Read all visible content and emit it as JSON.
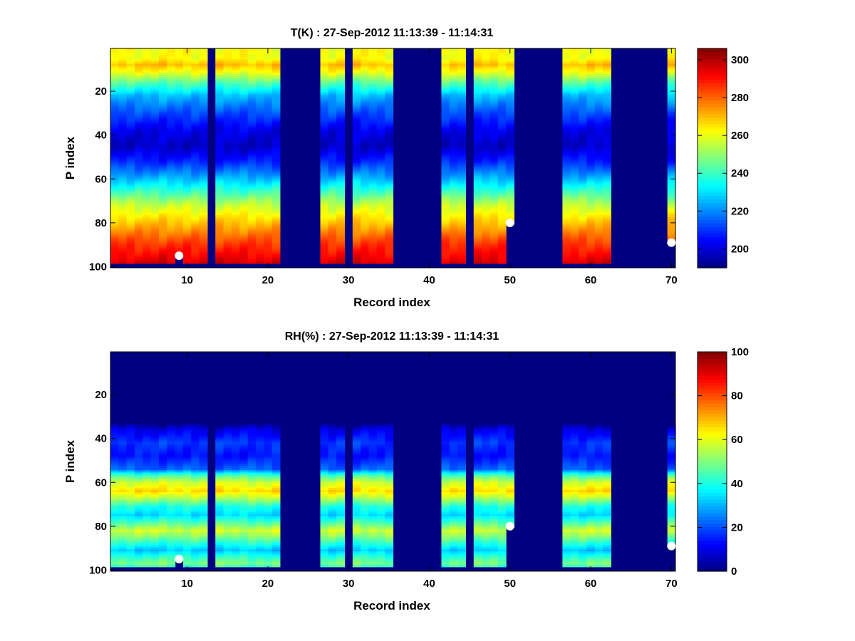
{
  "chart_data": [
    {
      "type": "heatmap",
      "title": "T(K) : 27-Sep-2012 11:13:39 - 11:14:31",
      "xlabel": "Record index",
      "ylabel": "P index",
      "xlim": [
        0.5,
        70.5
      ],
      "ylim": [
        100.5,
        0.5
      ],
      "xticks": [
        10,
        20,
        30,
        40,
        50,
        60,
        70
      ],
      "yticks": [
        20,
        40,
        60,
        80,
        100
      ],
      "clim": [
        190,
        306
      ],
      "colorbar_ticks": [
        200,
        220,
        240,
        260,
        280,
        300
      ],
      "colormap": "jet",
      "fill_value": 190,
      "valid_records": [
        [
          1,
          12
        ],
        [
          14,
          21
        ],
        [
          27,
          29
        ],
        [
          31,
          35
        ],
        [
          42,
          44
        ],
        [
          46,
          50
        ],
        [
          57,
          62
        ],
        [
          70,
          70
        ]
      ],
      "record_bottom": {
        "default": 98,
        "9": 95,
        "50": 80,
        "70": 89
      },
      "profile": [
        [
          5,
          262
        ],
        [
          8,
          270
        ],
        [
          11,
          262
        ],
        [
          16,
          244
        ],
        [
          22,
          226
        ],
        [
          30,
          213
        ],
        [
          38,
          202
        ],
        [
          45,
          198
        ],
        [
          52,
          208
        ],
        [
          60,
          226
        ],
        [
          66,
          241
        ],
        [
          72,
          256
        ],
        [
          78,
          266
        ],
        [
          84,
          276
        ],
        [
          90,
          286
        ],
        [
          95,
          292
        ],
        [
          98,
          296
        ]
      ],
      "markers": [
        {
          "record": 9,
          "p": 95
        },
        {
          "record": 50,
          "p": 80
        },
        {
          "record": 70,
          "p": 89
        }
      ]
    },
    {
      "type": "heatmap",
      "title": "RH(%) : 27-Sep-2012 11:13:39 - 11:14:31",
      "xlabel": "Record index",
      "ylabel": "P index",
      "xlim": [
        0.5,
        70.5
      ],
      "ylim": [
        100.5,
        0.5
      ],
      "xticks": [
        10,
        20,
        30,
        40,
        50,
        60,
        70
      ],
      "yticks": [
        20,
        40,
        60,
        80,
        100
      ],
      "clim": [
        0,
        100
      ],
      "colorbar_ticks": [
        0,
        20,
        40,
        60,
        80,
        100
      ],
      "colormap": "jet",
      "fill_value": 0,
      "valid_records": [
        [
          1,
          12
        ],
        [
          14,
          21
        ],
        [
          27,
          29
        ],
        [
          31,
          35
        ],
        [
          42,
          44
        ],
        [
          46,
          50
        ],
        [
          57,
          62
        ],
        [
          70,
          70
        ]
      ],
      "record_bottom": {
        "default": 98,
        "9": 95,
        "50": 80,
        "70": 89
      },
      "profile": [
        [
          33,
          0
        ],
        [
          36,
          10
        ],
        [
          42,
          18
        ],
        [
          48,
          14
        ],
        [
          54,
          22
        ],
        [
          57,
          45
        ],
        [
          60,
          58
        ],
        [
          64,
          66
        ],
        [
          67,
          56
        ],
        [
          71,
          40
        ],
        [
          75,
          34
        ],
        [
          79,
          48
        ],
        [
          82,
          58
        ],
        [
          85,
          50
        ],
        [
          88,
          40
        ],
        [
          91,
          32
        ],
        [
          94,
          42
        ],
        [
          97,
          50
        ],
        [
          98,
          45
        ]
      ],
      "markers": [
        {
          "record": 9,
          "p": 95
        },
        {
          "record": 50,
          "p": 80
        },
        {
          "record": 70,
          "p": 89
        }
      ]
    }
  ]
}
